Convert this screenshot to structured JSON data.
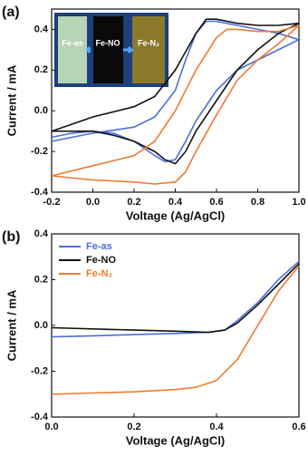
{
  "chart_data": [
    {
      "type": "line",
      "panel_label": "(a)",
      "xlabel": "Voltage (Ag/AgCl)",
      "ylabel": "Current / mA",
      "xlim": [
        -0.2,
        1.0
      ],
      "xticks": [
        -0.2,
        {
          "value": 0,
          "label": "0.0"
        },
        0.2,
        0.4,
        0.6,
        0.8,
        {
          "value": 1,
          "label": "1.0"
        }
      ],
      "ylim": [
        -0.4,
        0.5
      ],
      "yticks": [
        -0.4,
        -0.2,
        {
          "value": 0,
          "label": "0.0"
        },
        0.2,
        0.4
      ],
      "inset_labels": [
        "Fe-as",
        "Fe-NO",
        "Fe-N₂"
      ],
      "series": [
        {
          "name": "Fe-as",
          "color": "#4a6fd6",
          "x": [
            -0.2,
            0.0,
            0.2,
            0.3,
            0.4,
            0.45,
            0.5,
            0.55,
            0.6,
            0.7,
            0.8,
            0.9,
            1.0,
            0.9,
            0.8,
            0.7,
            0.6,
            0.5,
            0.45,
            0.4,
            0.35,
            0.3,
            0.2,
            0.1,
            0.0,
            -0.1,
            -0.2
          ],
          "values": [
            -0.15,
            -0.11,
            -0.08,
            -0.03,
            0.1,
            0.25,
            0.38,
            0.44,
            0.44,
            0.42,
            0.4,
            0.38,
            0.35,
            0.3,
            0.25,
            0.2,
            0.1,
            -0.05,
            -0.15,
            -0.24,
            -0.25,
            -0.22,
            -0.15,
            -0.11,
            -0.1,
            -0.11,
            -0.13
          ]
        },
        {
          "name": "Fe-NO",
          "color": "#111111",
          "x": [
            -0.2,
            0.0,
            0.2,
            0.3,
            0.4,
            0.5,
            0.55,
            0.6,
            0.7,
            0.8,
            0.9,
            1.0,
            0.9,
            0.8,
            0.7,
            0.6,
            0.5,
            0.45,
            0.4,
            0.35,
            0.3,
            0.2,
            0.1,
            0.0,
            -0.2
          ],
          "values": [
            -0.1,
            -0.03,
            0.02,
            0.07,
            0.2,
            0.38,
            0.45,
            0.45,
            0.43,
            0.42,
            0.42,
            0.43,
            0.38,
            0.3,
            0.2,
            0.05,
            -0.1,
            -0.2,
            -0.26,
            -0.24,
            -0.2,
            -0.15,
            -0.12,
            -0.1,
            -0.1
          ]
        },
        {
          "name": "Fe-N₂",
          "color": "#f07a30",
          "x": [
            -0.2,
            0.0,
            0.2,
            0.3,
            0.4,
            0.5,
            0.6,
            0.65,
            0.7,
            0.8,
            0.9,
            1.0,
            0.9,
            0.8,
            0.7,
            0.6,
            0.5,
            0.45,
            0.4,
            0.3,
            0.2,
            0.0,
            -0.2
          ],
          "values": [
            -0.32,
            -0.27,
            -0.22,
            -0.15,
            0.0,
            0.2,
            0.36,
            0.4,
            0.4,
            0.39,
            0.39,
            0.42,
            0.33,
            0.25,
            0.15,
            -0.02,
            -0.2,
            -0.3,
            -0.35,
            -0.36,
            -0.35,
            -0.34,
            -0.32
          ]
        }
      ]
    },
    {
      "type": "line",
      "panel_label": "(b)",
      "xlabel": "Voltage (Ag/AgCl)",
      "ylabel": "Current / mA",
      "xlim": [
        0,
        0.6
      ],
      "xticks": [
        {
          "value": 0,
          "label": "0.0"
        },
        0.2,
        0.4,
        0.6
      ],
      "ylim": [
        -0.4,
        0.4
      ],
      "yticks": [
        -0.4,
        -0.2,
        {
          "value": 0,
          "label": "0.0"
        },
        0.2,
        0.4
      ],
      "legend": "upper left",
      "series": [
        {
          "name": "Fe-as",
          "color": "#4a6fd6",
          "x": [
            0.0,
            0.1,
            0.2,
            0.3,
            0.38,
            0.42,
            0.45,
            0.5,
            0.55,
            0.6
          ],
          "values": [
            -0.05,
            -0.045,
            -0.04,
            -0.035,
            -0.03,
            -0.02,
            0.02,
            0.1,
            0.2,
            0.28
          ]
        },
        {
          "name": "Fe-NO",
          "color": "#111111",
          "x": [
            0.0,
            0.2,
            0.3,
            0.38,
            0.42,
            0.45,
            0.5,
            0.55,
            0.6
          ],
          "values": [
            -0.01,
            -0.02,
            -0.025,
            -0.03,
            -0.02,
            0.01,
            0.09,
            0.18,
            0.27
          ]
        },
        {
          "name": "Fe-N₂",
          "color": "#f07a30",
          "x": [
            0.0,
            0.1,
            0.2,
            0.3,
            0.35,
            0.4,
            0.45,
            0.5,
            0.55,
            0.6
          ],
          "values": [
            -0.3,
            -0.295,
            -0.29,
            -0.28,
            -0.27,
            -0.24,
            -0.15,
            0.0,
            0.15,
            0.26
          ]
        }
      ]
    }
  ]
}
